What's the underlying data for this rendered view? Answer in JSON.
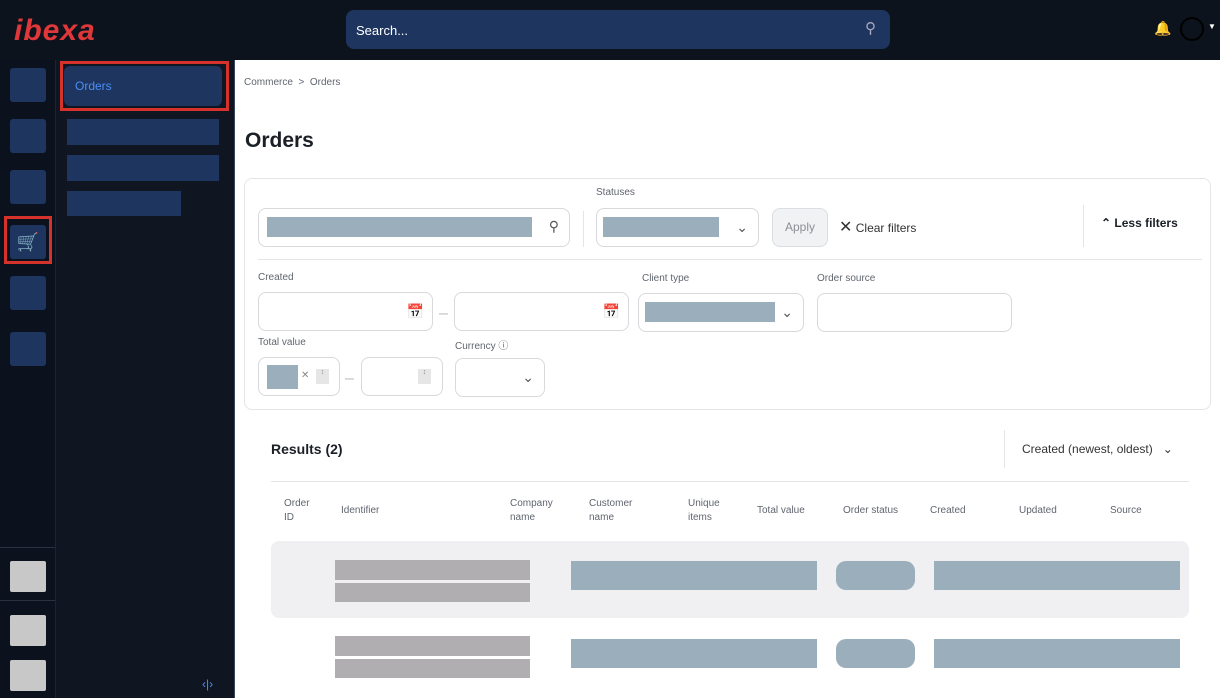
{
  "header": {
    "logo": "ibexa",
    "search_placeholder": "Search..."
  },
  "nav": {
    "active_item": "Orders"
  },
  "breadcrumb": {
    "parent": "Commerce",
    "separator": ">",
    "current": "Orders"
  },
  "page": {
    "title": "Orders"
  },
  "filters": {
    "statuses_label": "Statuses",
    "apply": "Apply",
    "clear": "Clear filters",
    "less": "Less filters",
    "created_label": "Created",
    "client_type_label": "Client type",
    "order_source_label": "Order source",
    "total_value_label": "Total value",
    "currency_label": "Currency",
    "range_sep": "–"
  },
  "results": {
    "title": "Results (2)",
    "sort": "Created (newest, oldest)",
    "columns": [
      "Order ID",
      "Identifier",
      "Company name",
      "Customer name",
      "Unique items",
      "Total value",
      "Order status",
      "Created",
      "Updated",
      "Source"
    ]
  }
}
